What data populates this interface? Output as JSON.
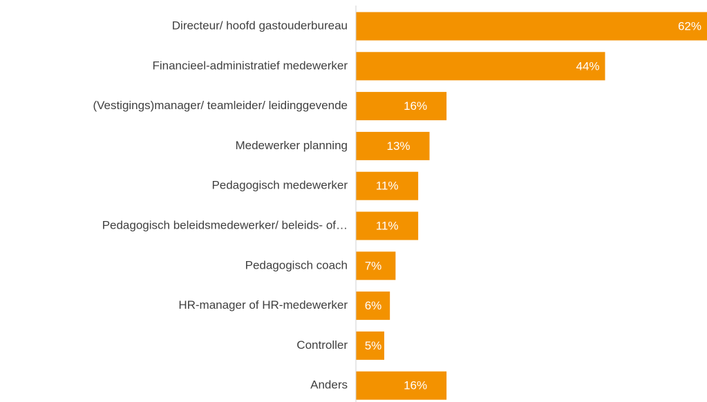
{
  "chart_data": {
    "type": "bar",
    "orientation": "horizontal",
    "categories": [
      "Directeur/ hoofd gastouderbureau",
      "Financieel-administratief medewerker",
      "(Vestigings)manager/ teamleider/ leidinggevende",
      "Medewerker planning",
      "Pedagogisch medewerker",
      "Pedagogisch beleidsmedewerker/ beleids- of…",
      "Pedagogisch coach",
      "HR-manager of HR-medewerker",
      "Controller",
      "Anders"
    ],
    "values": [
      62,
      44,
      16,
      13,
      11,
      11,
      7,
      6,
      5,
      16
    ],
    "value_labels": [
      "62%",
      "44%",
      "16%",
      "13%",
      "11%",
      "11%",
      "7%",
      "6%",
      "5%",
      "16%"
    ],
    "color": "#f39200"
  }
}
